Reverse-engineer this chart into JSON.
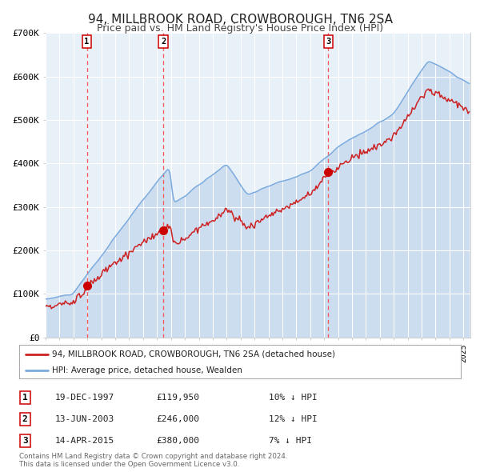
{
  "title": "94, MILLBROOK ROAD, CROWBOROUGH, TN6 2SA",
  "subtitle": "Price paid vs. HM Land Registry's House Price Index (HPI)",
  "ylim": [
    0,
    700000
  ],
  "yticks": [
    0,
    100000,
    200000,
    300000,
    400000,
    500000,
    600000,
    700000
  ],
  "ytick_labels": [
    "£0",
    "£100K",
    "£200K",
    "£300K",
    "£400K",
    "£500K",
    "£600K",
    "£700K"
  ],
  "xstart": 1995.0,
  "xend": 2025.5,
  "sale_dates": [
    1997.96,
    2003.45,
    2015.29
  ],
  "sale_prices": [
    119950,
    246000,
    380000
  ],
  "sale_labels": [
    "1",
    "2",
    "3"
  ],
  "vline_color": "#ff5555",
  "dot_color": "#cc0000",
  "hpi_line_color": "#7aaadd",
  "hpi_fill_color": "#ccddf0",
  "price_line_color": "#cc2222",
  "legend_entries": [
    "94, MILLBROOK ROAD, CROWBOROUGH, TN6 2SA (detached house)",
    "HPI: Average price, detached house, Wealden"
  ],
  "table_rows": [
    [
      "1",
      "19-DEC-1997",
      "£119,950",
      "10% ↓ HPI"
    ],
    [
      "2",
      "13-JUN-2003",
      "£246,000",
      "12% ↓ HPI"
    ],
    [
      "3",
      "14-APR-2015",
      "£380,000",
      "7% ↓ HPI"
    ]
  ],
  "footnote": "Contains HM Land Registry data © Crown copyright and database right 2024.\nThis data is licensed under the Open Government Licence v3.0.",
  "background_color": "#ffffff",
  "plot_bg_color": "#e8f0f8",
  "grid_color": "#ffffff"
}
